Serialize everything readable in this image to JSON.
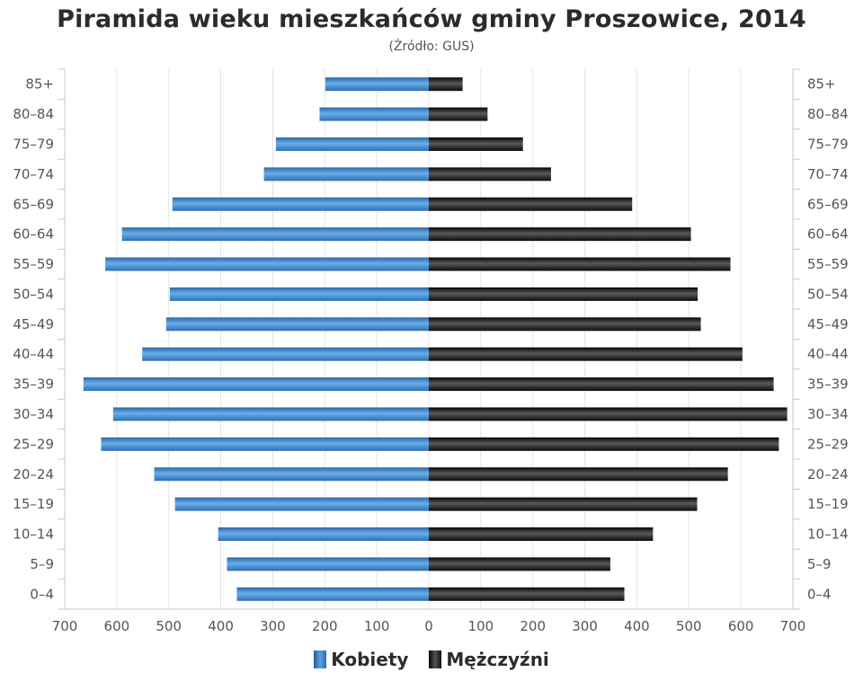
{
  "chart_data": {
    "type": "bar",
    "orientation": "horizontal",
    "title": "Piramida wieku mieszkańców gminy Proszowice, 2014",
    "subtitle": "(Źródło: GUS)",
    "categories": [
      "85+",
      "80–84",
      "75–79",
      "70–74",
      "65–69",
      "60–64",
      "55–59",
      "50–54",
      "45–49",
      "40–44",
      "35–39",
      "30–34",
      "25–29",
      "20–24",
      "15–19",
      "10–14",
      "5–9",
      "0–4"
    ],
    "series": [
      {
        "name": "Kobiety",
        "side": "left",
        "color": "#3a7fc6",
        "values": [
          199,
          210,
          294,
          317,
          493,
          590,
          622,
          498,
          505,
          551,
          664,
          607,
          630,
          528,
          488,
          405,
          388,
          369
        ]
      },
      {
        "name": "Mężczyźni",
        "side": "right",
        "color": "#111111",
        "values": [
          65,
          113,
          181,
          235,
          391,
          504,
          580,
          517,
          523,
          603,
          663,
          689,
          673,
          575,
          516,
          431,
          349,
          376
        ]
      }
    ],
    "xlim": [
      -700,
      700
    ],
    "x_ticks": [
      700,
      600,
      500,
      400,
      300,
      200,
      100,
      0,
      100,
      200,
      300,
      400,
      500,
      600,
      700
    ],
    "grid": true,
    "legend_position": "bottom-center"
  }
}
